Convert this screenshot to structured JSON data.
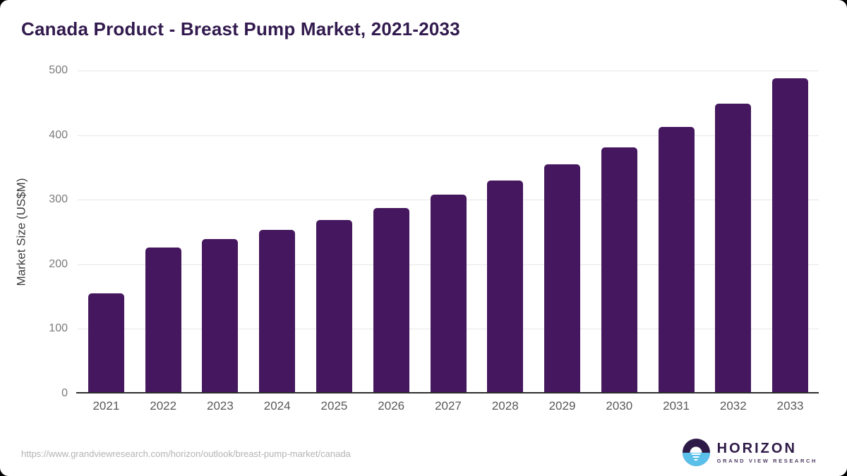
{
  "title": "Canada Product - Breast Pump Market, 2021-2033",
  "ylabel": "Market Size (US$M)",
  "footer": {
    "url": "https://www.grandviewresearch.com/horizon/outlook/breast-pump-market/canada"
  },
  "logo": {
    "title": "HORIZON",
    "subtitle": "GRAND VIEW RESEARCH"
  },
  "colors": {
    "bar": "#45175e",
    "title_text": "#321a4e",
    "logo_purple": "#2e1a47",
    "logo_blue": "#5ac0ea"
  },
  "chart_data": {
    "type": "bar",
    "title": "Canada Product - Breast Pump Market, 2021-2033",
    "categories": [
      "2021",
      "2022",
      "2023",
      "2024",
      "2025",
      "2026",
      "2027",
      "2028",
      "2029",
      "2030",
      "2031",
      "2032",
      "2033"
    ],
    "values": [
      155,
      226,
      239,
      253,
      269,
      287,
      308,
      330,
      355,
      381,
      413,
      449,
      488
    ],
    "xlabel": "",
    "ylabel": "Market Size (US$M)",
    "ylim": [
      0,
      500
    ],
    "yticks": [
      0,
      100,
      200,
      300,
      400,
      500
    ],
    "grid": true,
    "legend": "none",
    "bar_color": "#45175e"
  }
}
